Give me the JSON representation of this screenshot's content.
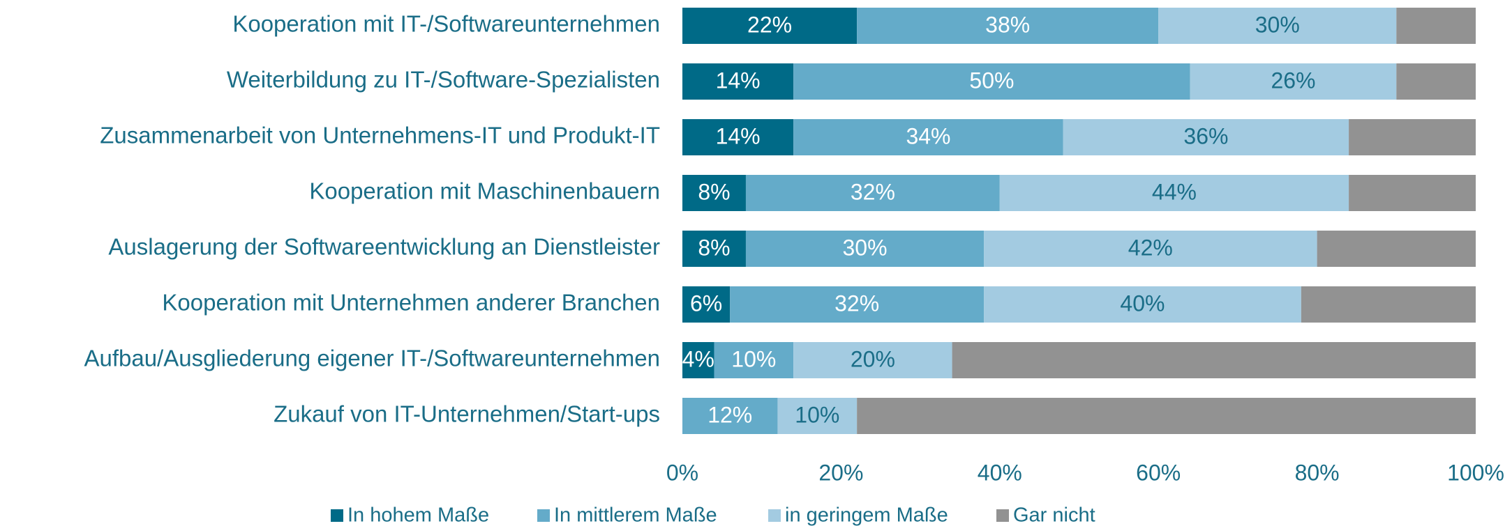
{
  "chart_data": {
    "type": "stacked-barh",
    "categories": [
      "Kooperation mit IT-/Softwareunternehmen",
      "Weiterbildung zu IT-/Software-Spezialisten",
      "Zusammenarbeit von Unternehmens-IT und Produkt-IT",
      "Kooperation mit Maschinenbauern",
      "Auslagerung der Softwareentwicklung an Dienstleister",
      "Kooperation mit Unternehmen anderer Branchen",
      "Aufbau/Ausgliederung eigener IT-/Softwareunternehmen",
      "Zukauf von IT-Unternehmen/Start-ups"
    ],
    "series": [
      {
        "name": "In hohem Maße",
        "color": "#006a87",
        "label_color": "#ffffff",
        "values": [
          22,
          14,
          14,
          8,
          8,
          6,
          4,
          0
        ],
        "value_labels": [
          "22%",
          "14%",
          "14%",
          "8%",
          "8%",
          "6%",
          "4%",
          null
        ]
      },
      {
        "name": "In mittlerem Maße",
        "color": "#64abc9",
        "label_color": "#ffffff",
        "values": [
          38,
          50,
          34,
          32,
          30,
          32,
          10,
          12
        ],
        "value_labels": [
          "38%",
          "50%",
          "34%",
          "32%",
          "30%",
          "32%",
          "10%",
          "12%"
        ]
      },
      {
        "name": "in geringem Maße",
        "color": "#a3cbe1",
        "label_color": "#1a6d87",
        "values": [
          30,
          26,
          36,
          44,
          42,
          40,
          20,
          10
        ],
        "value_labels": [
          "30%",
          "26%",
          "36%",
          "44%",
          "42%",
          "40%",
          "20%",
          "10%"
        ]
      },
      {
        "name": "Gar nicht",
        "color": "#929292",
        "label_color": "#ffffff",
        "values": [
          10,
          10,
          16,
          16,
          20,
          22,
          66,
          78
        ],
        "value_labels": [
          null,
          null,
          null,
          null,
          null,
          null,
          null,
          null
        ]
      }
    ],
    "xlim": [
      0,
      100
    ],
    "xticks": [
      {
        "value": 0,
        "label": "0%"
      },
      {
        "value": 20,
        "label": "20%"
      },
      {
        "value": 40,
        "label": "40%"
      },
      {
        "value": 60,
        "label": "60%"
      },
      {
        "value": 80,
        "label": "80%"
      },
      {
        "value": 100,
        "label": "100%"
      }
    ],
    "legend": "bottom"
  }
}
